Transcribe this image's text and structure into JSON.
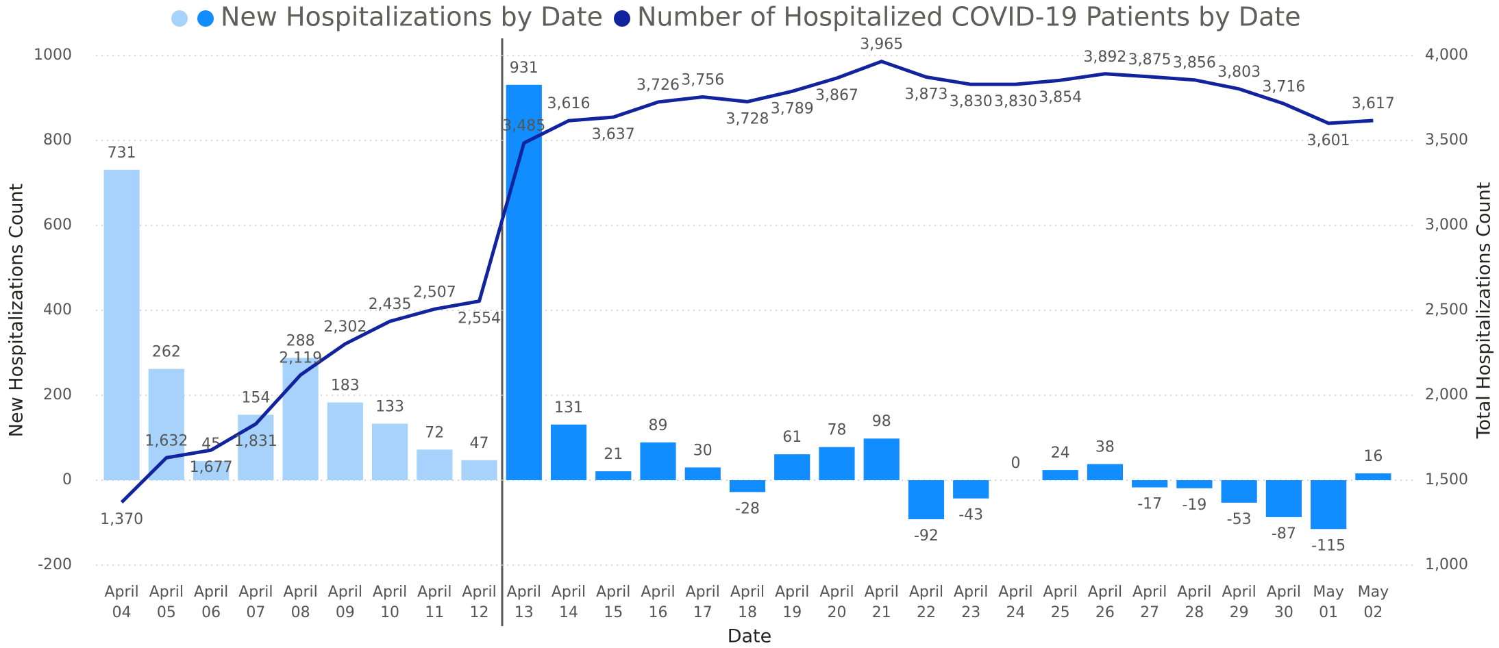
{
  "chart_data": {
    "type": "bar",
    "xlabel": "Date",
    "ylabel": "New Hospitalizations Count",
    "y2label": "Total Hospitalizations Count",
    "categories": [
      "April 04",
      "April 05",
      "April 06",
      "April 07",
      "April 08",
      "April 09",
      "April 10",
      "April 11",
      "April 12",
      "April 13",
      "April 14",
      "April 15",
      "April 16",
      "April 17",
      "April 18",
      "April 19",
      "April 20",
      "April 21",
      "April 22",
      "April 23",
      "April 24",
      "April 25",
      "April 26",
      "April 27",
      "April 28",
      "April 29",
      "April 30",
      "May 01",
      "May 02"
    ],
    "series": [
      {
        "name": "New Hospitalizations by Date",
        "type": "bar",
        "colors": [
          "#a6d2fb",
          "#a6d2fb",
          "#a6d2fb",
          "#a6d2fb",
          "#a6d2fb",
          "#a6d2fb",
          "#a6d2fb",
          "#a6d2fb",
          "#a6d2fb",
          "#118dff",
          "#118dff",
          "#118dff",
          "#118dff",
          "#118dff",
          "#118dff",
          "#118dff",
          "#118dff",
          "#118dff",
          "#118dff",
          "#118dff",
          "#118dff",
          "#118dff",
          "#118dff",
          "#118dff",
          "#118dff",
          "#118dff",
          "#118dff",
          "#118dff",
          "#118dff"
        ],
        "values": [
          731,
          262,
          45,
          154,
          288,
          183,
          133,
          72,
          47,
          931,
          131,
          21,
          89,
          30,
          -28,
          61,
          78,
          98,
          -92,
          -43,
          0,
          24,
          38,
          -17,
          -19,
          -53,
          -87,
          -115,
          16
        ]
      },
      {
        "name": "Number of Hospitalized COVID-19 Patients by Date",
        "type": "line",
        "axis": "y2",
        "color": "#12239e",
        "values": [
          1370,
          1632,
          1677,
          1831,
          2119,
          2302,
          2435,
          2507,
          2554,
          3485,
          3616,
          3637,
          3726,
          3756,
          3728,
          3789,
          3867,
          3965,
          3873,
          3830,
          3830,
          3854,
          3892,
          3875,
          3856,
          3803,
          3716,
          3601,
          3617
        ],
        "value_labels": [
          "1,370",
          "1,632",
          "1,677",
          "1,831",
          "2,119",
          "2,302",
          "2,435",
          "2,507",
          "2,554",
          "3,485",
          "3,616",
          "3,637",
          "3,726",
          "3,756",
          "3,728",
          "3,789",
          "3,867",
          "3,965",
          "3,873",
          "3,830",
          "3,830",
          "3,854",
          "3,892",
          "3,875",
          "3,856",
          "3,803",
          "3,716",
          "3,601",
          "3,617"
        ]
      }
    ],
    "ylim": [
      -200,
      1000
    ],
    "yticks": [
      -200,
      0,
      200,
      400,
      600,
      800,
      1000
    ],
    "y2lim": [
      1000,
      4000
    ],
    "y2ticks": [
      {
        "value": 1000,
        "label": "1,000"
      },
      {
        "value": 1500,
        "label": "1,500"
      },
      {
        "value": 2000,
        "label": "2,000"
      },
      {
        "value": 2500,
        "label": "2,500"
      },
      {
        "value": 3000,
        "label": "3,000"
      },
      {
        "value": 3500,
        "label": "3,500"
      },
      {
        "value": 4000,
        "label": "4,000"
      }
    ],
    "grid": true,
    "legend": "top"
  }
}
